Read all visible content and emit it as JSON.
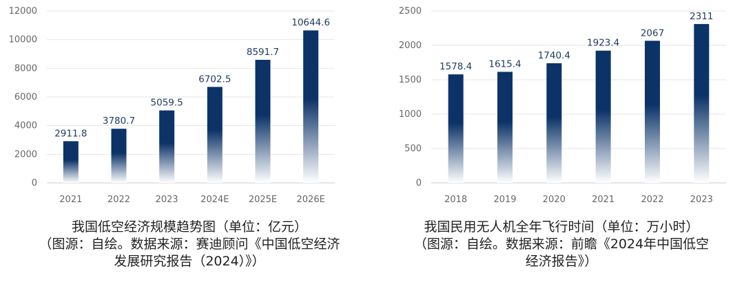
{
  "chart_data": [
    {
      "type": "bar",
      "categories": [
        "2021",
        "2022",
        "2023",
        "2024E",
        "2025E",
        "2026E"
      ],
      "values": [
        2911.8,
        3780.7,
        5059.5,
        6702.5,
        8591.7,
        10644.6
      ],
      "data_labels": [
        "2911.8",
        "3780.7",
        "5059.5",
        "6702.5",
        "8591.7",
        "10644.6"
      ],
      "ylim": [
        0,
        12000
      ],
      "yticks": [
        "0",
        "2000",
        "4000",
        "6000",
        "8000",
        "10000",
        "12000"
      ],
      "grid": true,
      "caption_lines": [
        "我国低空经济规模趋势图（单位：亿元）",
        "（图源：自绘。数据来源：赛迪顾问《中国低空经济",
        "发展研究报告（2024）》）"
      ]
    },
    {
      "type": "bar",
      "categories": [
        "2018",
        "2019",
        "2020",
        "2021",
        "2022",
        "2023"
      ],
      "values": [
        1578.4,
        1615.4,
        1740.4,
        1923.4,
        2067,
        2311
      ],
      "data_labels": [
        "1578.4",
        "1615.4",
        "1740.4",
        "1923.4",
        "2067",
        "2311"
      ],
      "ylim": [
        0,
        2500
      ],
      "yticks": [
        "0",
        "500",
        "1000",
        "1500",
        "2000",
        "2500"
      ],
      "grid": true,
      "caption_lines": [
        "我国民用无人机全年飞行时间（单位：万小时）",
        "（图源：自绘。数据来源：前瞻《2024年中国低空",
        "经济报告》）"
      ]
    }
  ],
  "colors": {
    "bar_top": "#0b3368",
    "bar_bottom": "#ffffff",
    "grid": "#e6e6e6",
    "tick": "#666666",
    "label": "#1f3b63"
  }
}
